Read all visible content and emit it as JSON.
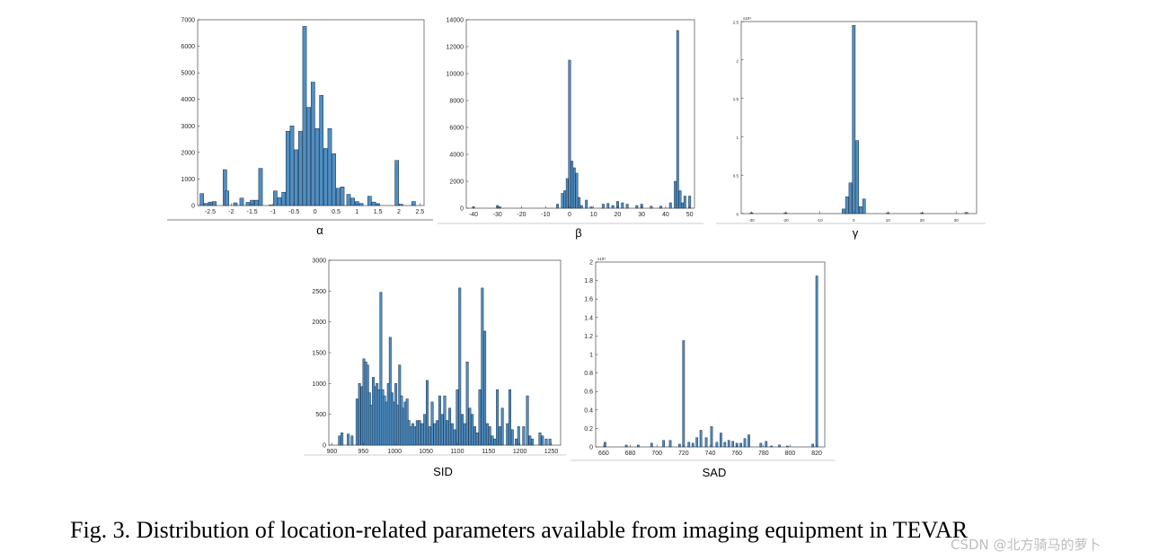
{
  "caption": "Fig. 3.  Distribution of location-related parameters available from imaging equipment in TEVAR",
  "watermark": "CSDN @北方骑马的萝卜",
  "colors": {
    "bar_fill": "#4f8fc4",
    "bar_stroke": "#1b2f45",
    "axis": "#262626"
  },
  "chart_data": [
    {
      "type": "bar",
      "xlabel": "α",
      "xlim": [
        -2.8,
        2.6
      ],
      "ylim": [
        0,
        7000
      ],
      "xticks": [
        "-2.5",
        "-2",
        "-1.5",
        "-1",
        "-0.5",
        "0",
        "0.5",
        "1",
        "1.5",
        "2",
        "2.5"
      ],
      "yticks": [
        "0",
        "1000",
        "2000",
        "3000",
        "4000",
        "5000",
        "6000",
        "7000"
      ],
      "bar_width": 0.09,
      "x": [
        -2.7,
        -2.6,
        -2.5,
        -2.4,
        -2.15,
        -2.1,
        -1.9,
        -1.75,
        -1.6,
        -1.5,
        -1.4,
        -1.3,
        -1.05,
        -0.95,
        -0.85,
        -0.75,
        -0.65,
        -0.55,
        -0.45,
        -0.35,
        -0.25,
        -0.15,
        -0.05,
        0.05,
        0.15,
        0.25,
        0.35,
        0.45,
        0.55,
        0.65,
        0.8,
        0.9,
        1.0,
        1.1,
        1.3,
        1.4,
        1.5,
        1.95,
        2.05,
        2.35
      ],
      "values": [
        450,
        80,
        130,
        150,
        1350,
        550,
        100,
        280,
        120,
        200,
        200,
        1400,
        20,
        550,
        300,
        500,
        2800,
        3000,
        2100,
        2800,
        6750,
        3700,
        4650,
        2900,
        4150,
        2150,
        2900,
        1950,
        650,
        700,
        420,
        280,
        150,
        80,
        350,
        130,
        70,
        1700,
        50,
        150
      ]
    },
    {
      "type": "bar",
      "xlabel": "β",
      "xlim": [
        -43,
        52
      ],
      "ylim": [
        0,
        14000
      ],
      "xticks": [
        "-40",
        "-30",
        "-20",
        "-10",
        "0",
        "10",
        "20",
        "30",
        "40",
        "50"
      ],
      "yticks": [
        "0",
        "2000",
        "4000",
        "6000",
        "8000",
        "10000",
        "12000",
        "14000"
      ],
      "bar_width": 0.9,
      "x": [
        -40,
        -30,
        -29,
        -5,
        -3,
        -2,
        -1,
        0,
        1,
        2,
        3,
        4,
        5,
        7,
        9,
        14,
        16,
        18,
        20,
        22,
        24,
        28,
        30,
        34,
        38,
        42,
        44,
        45,
        46,
        47,
        48,
        50
      ],
      "values": [
        100,
        200,
        100,
        300,
        1100,
        1300,
        2200,
        11000,
        3500,
        3000,
        2600,
        800,
        200,
        600,
        100,
        300,
        350,
        200,
        500,
        400,
        300,
        200,
        300,
        150,
        150,
        400,
        2000,
        13200,
        1300,
        400,
        900,
        900
      ]
    },
    {
      "type": "bar",
      "xlabel": "γ",
      "xlim": [
        -33,
        36
      ],
      "ylim": [
        0,
        25000
      ],
      "scale_exponent": "x10⁴",
      "xticks": [
        "-30",
        "-20",
        "-10",
        "0",
        "10",
        "20",
        "30"
      ],
      "yticks": [
        "0",
        "0.5",
        "1",
        "1.5",
        "2",
        "2.5"
      ],
      "bar_width": 0.85,
      "x": [
        -30,
        -20,
        -3,
        -2,
        -1,
        0,
        1,
        2,
        3,
        10,
        20,
        33
      ],
      "values": [
        100,
        100,
        600,
        2200,
        4000,
        24500,
        9500,
        900,
        1900,
        100,
        100,
        150
      ]
    },
    {
      "type": "bar",
      "xlabel": "SID",
      "xlim": [
        895,
        1265
      ],
      "ylim": [
        0,
        3000
      ],
      "xticks": [
        "900",
        "950",
        "1000",
        "1050",
        "1100",
        "1150",
        "1200",
        "1250"
      ],
      "yticks": [
        "0",
        "500",
        "1000",
        "1500",
        "2000",
        "2500",
        "3000"
      ],
      "bar_width": 3.5,
      "x": [
        912,
        916,
        926,
        932,
        940,
        944,
        948,
        951,
        954,
        957,
        960,
        963,
        966,
        969,
        972,
        975,
        978,
        981,
        984,
        987,
        990,
        993,
        996,
        999,
        1002,
        1005,
        1008,
        1011,
        1014,
        1017,
        1020,
        1023,
        1026,
        1029,
        1032,
        1036,
        1040,
        1044,
        1048,
        1052,
        1056,
        1060,
        1064,
        1068,
        1072,
        1076,
        1080,
        1084,
        1088,
        1092,
        1096,
        1100,
        1104,
        1108,
        1112,
        1116,
        1120,
        1124,
        1128,
        1132,
        1136,
        1140,
        1144,
        1148,
        1152,
        1156,
        1160,
        1164,
        1168,
        1172,
        1180,
        1184,
        1188,
        1194,
        1198,
        1206,
        1212,
        1216,
        1220,
        1232,
        1236,
        1242,
        1248
      ],
      "values": [
        150,
        200,
        180,
        150,
        750,
        1000,
        950,
        1400,
        1350,
        1300,
        850,
        650,
        1100,
        950,
        1000,
        900,
        2480,
        900,
        800,
        700,
        1000,
        1750,
        850,
        700,
        1000,
        650,
        1300,
        800,
        600,
        700,
        750,
        400,
        300,
        350,
        300,
        400,
        400,
        350,
        500,
        1050,
        300,
        700,
        350,
        400,
        800,
        500,
        800,
        400,
        600,
        350,
        250,
        900,
        2550,
        500,
        350,
        1350,
        600,
        500,
        300,
        200,
        900,
        2550,
        1850,
        350,
        300,
        150,
        100,
        900,
        300,
        600,
        350,
        900,
        250,
        100,
        300,
        300,
        800,
        150,
        100,
        200,
        150,
        100,
        100
      ]
    },
    {
      "type": "bar",
      "xlabel": "SAD",
      "xlim": [
        654,
        826
      ],
      "ylim": [
        0,
        20000
      ],
      "scale_exponent": "x10⁴",
      "xticks": [
        "660",
        "680",
        "700",
        "720",
        "740",
        "760",
        "780",
        "800",
        "820"
      ],
      "yticks": [
        "0",
        "0.2",
        "0.4",
        "0.6",
        "0.8",
        "1",
        "1.2",
        "1.4",
        "1.6",
        "1.8",
        "2"
      ],
      "bar_width": 1.5,
      "x": [
        661,
        677,
        686,
        696,
        705,
        710,
        717,
        720,
        724,
        727,
        730,
        733,
        737,
        741,
        745,
        748,
        751,
        754,
        757,
        760,
        763,
        766,
        769,
        778,
        782,
        786,
        792,
        798,
        817,
        820
      ],
      "values": [
        500,
        200,
        200,
        400,
        700,
        700,
        300,
        11500,
        500,
        400,
        1000,
        1800,
        1000,
        2200,
        500,
        1500,
        500,
        700,
        600,
        400,
        400,
        900,
        1300,
        400,
        600,
        100,
        200,
        100,
        300,
        18500
      ]
    }
  ]
}
